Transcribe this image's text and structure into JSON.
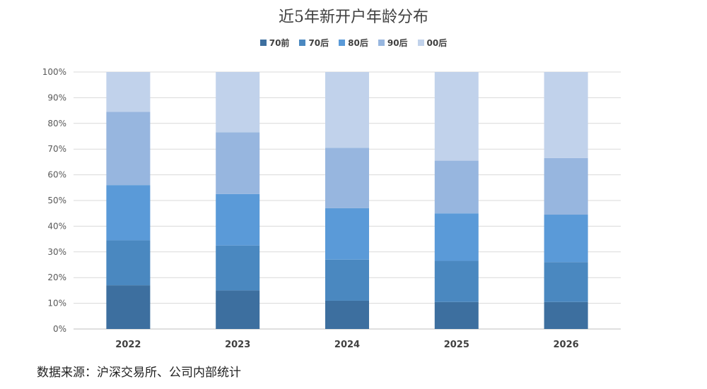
{
  "chart_data": {
    "type": "bar",
    "stacked": true,
    "title": "近5年新开户年龄分布",
    "categories": [
      "2022",
      "2023",
      "2024",
      "2025",
      "2026"
    ],
    "series": [
      {
        "name": "70前",
        "color": "#3d6f9f",
        "values": [
          17,
          15,
          11,
          10.5,
          10.5
        ]
      },
      {
        "name": "70后",
        "color": "#4a88c0",
        "values": [
          17.5,
          17.5,
          16,
          16,
          15.5
        ]
      },
      {
        "name": "80后",
        "color": "#5a9ad8",
        "values": [
          21.5,
          20,
          20,
          18.5,
          18.5
        ]
      },
      {
        "name": "90后",
        "color": "#97b6df",
        "values": [
          28.5,
          24,
          23.5,
          20.5,
          22
        ]
      },
      {
        "name": "00后",
        "color": "#c1d2eb",
        "values": [
          15.5,
          23.5,
          29.5,
          34.5,
          33.5
        ]
      }
    ],
    "ylim": [
      0,
      100
    ],
    "yticks": [
      "0%",
      "10%",
      "20%",
      "30%",
      "40%",
      "50%",
      "60%",
      "70%",
      "80%",
      "90%",
      "100%"
    ],
    "grid": true,
    "legend": "top-center"
  },
  "source": "数据来源：沪深交易所、公司内部统计"
}
